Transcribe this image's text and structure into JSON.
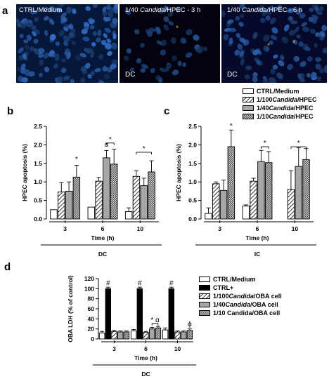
{
  "panels": {
    "a": "a",
    "b": "b",
    "c": "c",
    "d": "d"
  },
  "micrographs": [
    {
      "label_prefix": "CTRL/Medium",
      "label_italic": "",
      "label_suffix": "",
      "dc": ""
    },
    {
      "label_prefix": "1/40 ",
      "label_italic": "Candida",
      "label_suffix": "/HPEC - 3 h",
      "dc": "DC"
    },
    {
      "label_prefix": "1/40 ",
      "label_italic": "Candida",
      "label_suffix": "/HPEC - 6 h",
      "dc": "DC"
    }
  ],
  "legend_top": [
    {
      "prefix": "CTRL/Medium",
      "italic": "",
      "suffix": "",
      "fill": "white"
    },
    {
      "prefix": "1/100 ",
      "italic": "Candida",
      "suffix": "/HPEC",
      "fill": "hatch"
    },
    {
      "prefix": "1/40 ",
      "italic": "Candida",
      "suffix": "/HPEC",
      "fill": "grey"
    },
    {
      "prefix": "1/10 ",
      "italic": "Candida",
      "suffix": "/HPEC",
      "fill": "check"
    }
  ],
  "legend_d": [
    {
      "prefix": "CTRL/Medium",
      "italic": "",
      "suffix": "",
      "fill": "white"
    },
    {
      "prefix": "CTRL+",
      "italic": "",
      "suffix": "",
      "fill": "black"
    },
    {
      "prefix": "1/100 ",
      "italic": "Candida",
      "suffix": "/OBA cell",
      "fill": "hatch"
    },
    {
      "prefix": "1/40 ",
      "italic": "Candida",
      "suffix": "/OBA cell",
      "fill": "grey"
    },
    {
      "prefix": "1/10 Candida/OBA cell",
      "italic": "",
      "suffix": "",
      "fill": "check"
    }
  ],
  "chart_data": [
    {
      "id": "b",
      "type": "bar",
      "categories": [
        "3",
        "6",
        "10"
      ],
      "xlabel": "Time (h)",
      "ylabel": "HPEC apoptosis (%)",
      "group_label": "DC",
      "ylim": [
        0,
        2.5
      ],
      "yticks": [
        "0.0",
        "0.5",
        "1.0",
        "1.5",
        "2.0",
        "2.5"
      ],
      "series": [
        {
          "values": [
            0.25,
            0.32,
            0.2
          ],
          "errors": [
            0.0,
            0.0,
            0.1
          ]
        },
        {
          "values": [
            0.73,
            1.02,
            1.15
          ],
          "errors": [
            0.25,
            0.1,
            0.15
          ]
        },
        {
          "values": [
            0.75,
            1.65,
            0.9
          ],
          "errors": [
            0.25,
            0.2,
            0.2
          ]
        },
        {
          "values": [
            1.13,
            1.48,
            1.27
          ],
          "errors": [
            0.32,
            0.4,
            0.3
          ]
        }
      ],
      "annotations": [
        {
          "text": "*",
          "cat": 0,
          "bar": 3,
          "y": 1.55
        },
        {
          "text": "α",
          "cat": 1,
          "bar": 2,
          "y": 1.95
        },
        {
          "text": "*",
          "bracket": [
            1,
            2,
            1,
            3
          ],
          "y": 2.05
        },
        {
          "text": "*",
          "bracket": [
            2,
            1,
            2,
            3
          ],
          "y": 1.8
        }
      ]
    },
    {
      "id": "c",
      "type": "bar",
      "categories": [
        "3",
        "6",
        "10"
      ],
      "xlabel": "Time (h)",
      "ylabel": "HPEC apoptosis (%)",
      "group_label": "IC",
      "ylim": [
        0,
        2.5
      ],
      "yticks": [
        "0.0",
        "0.5",
        "1.0",
        "1.5",
        "2.0",
        "2.5"
      ],
      "series": [
        {
          "values": [
            0.15,
            0.35,
            0.0
          ],
          "errors": [
            0.15,
            0.03,
            0.0
          ]
        },
        {
          "values": [
            0.95,
            1.02,
            0.8
          ],
          "errors": [
            0.05,
            0.08,
            0.5
          ]
        },
        {
          "values": [
            0.77,
            1.55,
            1.42
          ],
          "errors": [
            0.28,
            0.3,
            0.5
          ]
        },
        {
          "values": [
            1.95,
            1.52,
            1.6
          ],
          "errors": [
            0.45,
            0.3,
            0.3
          ]
        }
      ],
      "annotations": [
        {
          "text": "*",
          "cat": 0,
          "bar": 3,
          "y": 2.45
        },
        {
          "text": "*",
          "bracket": [
            1,
            2,
            1,
            3
          ],
          "y": 1.95
        },
        {
          "text": "*",
          "bracket": [
            2,
            1,
            2,
            3
          ],
          "y": 1.95
        }
      ]
    },
    {
      "id": "d",
      "type": "bar",
      "categories": [
        "3",
        "6",
        "10"
      ],
      "xlabel": "Time (h)",
      "ylabel": "OBA LDH (% of control)",
      "group_label": "DC",
      "ylim": [
        0,
        120
      ],
      "yticks": [
        "0",
        "20",
        "40",
        "60",
        "80",
        "100",
        "120"
      ],
      "series": [
        {
          "values": [
            12,
            16,
            18
          ],
          "errors": [
            3,
            3,
            4
          ]
        },
        {
          "values": [
            100,
            100,
            100
          ],
          "errors": [
            3,
            3,
            3
          ]
        },
        {
          "values": [
            15,
            13,
            14
          ],
          "errors": [
            2,
            2,
            2
          ]
        },
        {
          "values": [
            14,
            20,
            14
          ],
          "errors": [
            2,
            3,
            2
          ]
        },
        {
          "values": [
            14,
            22,
            17
          ],
          "errors": [
            2,
            3,
            3
          ]
        }
      ],
      "annotations": [
        {
          "text": "#",
          "cat": 0,
          "bar": 1,
          "y": 107
        },
        {
          "text": "#",
          "cat": 1,
          "bar": 1,
          "y": 107
        },
        {
          "text": "#",
          "cat": 2,
          "bar": 1,
          "y": 107
        },
        {
          "text": "* α",
          "bracket": [
            1,
            3,
            1,
            4
          ],
          "y": 31
        },
        {
          "text": "ϕ",
          "cat": 2,
          "bar": 4,
          "y": 25
        }
      ]
    }
  ]
}
